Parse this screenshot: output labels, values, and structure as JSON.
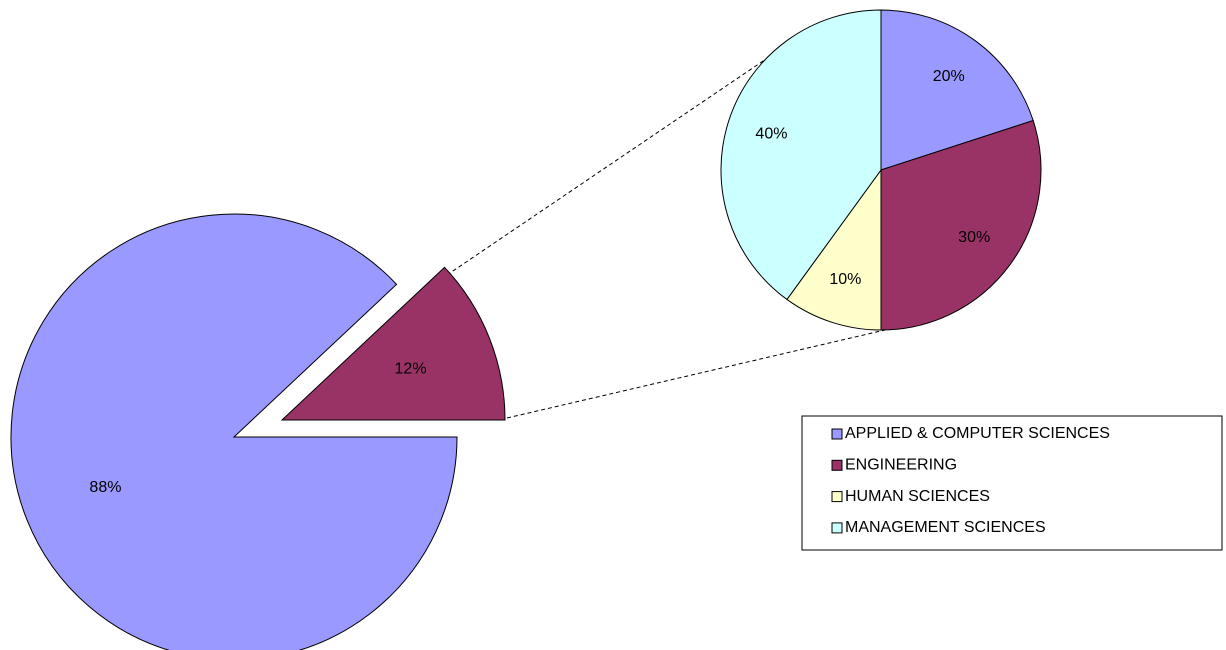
{
  "chart_data": [
    {
      "type": "pie",
      "values": [
        88,
        12
      ],
      "value_labels": [
        "88%",
        "12%"
      ],
      "colors": [
        "#9999ff",
        "#993366"
      ]
    },
    {
      "type": "pie",
      "categories": [
        "APPLIED & COMPUTER SCIENCES",
        "ENGINEERING",
        "HUMAN SCIENCES",
        "MANAGEMENT SCIENCES"
      ],
      "values": [
        20,
        30,
        10,
        40
      ],
      "value_labels": [
        "20%",
        "30%",
        "10%",
        "40%"
      ],
      "colors": [
        "#9999ff",
        "#993366",
        "#ffffcc",
        "#ccffff"
      ],
      "legend": "lower right"
    }
  ]
}
